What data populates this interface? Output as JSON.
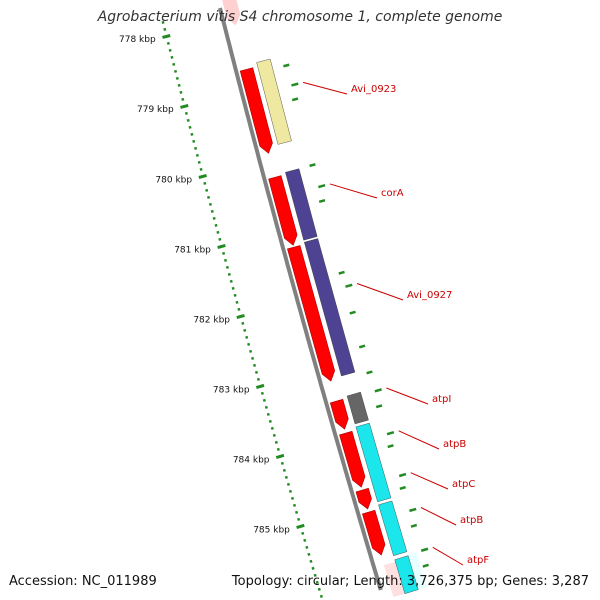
{
  "title": "Agrobacterium vitis S4 chromosome 1, complete genome",
  "accession": "Accession: NC_011989",
  "summary": "Topology: circular; Length: 3,726,375 bp; Genes: 3,287",
  "ruler": {
    "ticks": [
      {
        "kbp": 778,
        "label": "778 kbp"
      },
      {
        "kbp": 779,
        "label": "779 kbp"
      },
      {
        "kbp": 780,
        "label": "780 kbp"
      },
      {
        "kbp": 781,
        "label": "781 kbp"
      },
      {
        "kbp": 782,
        "label": "782 kbp"
      },
      {
        "kbp": 783,
        "label": "783 kbp"
      },
      {
        "kbp": 784,
        "label": "784 kbp"
      },
      {
        "kbp": 785,
        "label": "785 kbp"
      }
    ]
  },
  "genes": [
    {
      "label": "Avi_0923",
      "color": "#efe8a0"
    },
    {
      "label": "corA",
      "color": "#4e4393"
    },
    {
      "label": "Avi_0927",
      "color": "#4e4393"
    },
    {
      "label": "atpI",
      "color": "#666666"
    },
    {
      "label": "atpB",
      "color": "#1ae6ec"
    },
    {
      "label": "atpC",
      "color": "#1ae6ec"
    },
    {
      "label": "atpB",
      "color": "#1ae6ec"
    },
    {
      "label": "atpF",
      "color": "#1ae6ec"
    }
  ],
  "colors": {
    "cds": "#ff0000",
    "backbone": "#808080",
    "tick": "#228b22",
    "label": "#cc0000"
  }
}
